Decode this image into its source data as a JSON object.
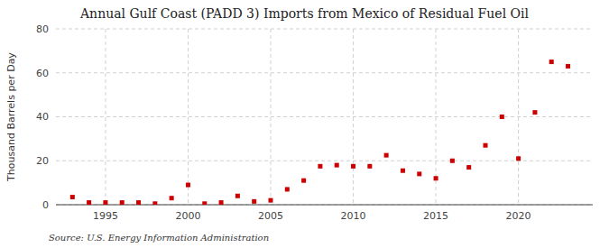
{
  "chart_data": {
    "type": "scatter",
    "title": "Annual Gulf Coast (PADD 3) Imports from Mexico of Residual Fuel Oil",
    "y_label": "Thousand Barrels per Day",
    "annotations": [
      "Source: U.S. Energy Information Administration"
    ],
    "x": [
      1993,
      1994,
      1995,
      1996,
      1997,
      1998,
      1999,
      2000,
      2001,
      2002,
      2003,
      2004,
      2005,
      2006,
      2007,
      2008,
      2009,
      2010,
      2011,
      2012,
      2013,
      2014,
      2015,
      2016,
      2017,
      2018,
      2019,
      2020,
      2021,
      2022,
      2023
    ],
    "values": [
      3.5,
      1.0,
      1.0,
      1.0,
      1.0,
      0.5,
      3.0,
      9.0,
      0.5,
      1.0,
      4.0,
      1.5,
      2.0,
      7.0,
      11.0,
      17.5,
      18.0,
      17.5,
      17.5,
      22.5,
      15.5,
      14.0,
      12.0,
      20.0,
      17.0,
      27.0,
      40.0,
      21.0,
      42.0,
      65.0,
      63.0
    ],
    "color": "#cc0000",
    "marker": "square",
    "xlim": [
      1992.0,
      2024.5
    ],
    "xticks": [
      1995,
      2000,
      2005,
      2010,
      2015,
      2020
    ],
    "ylim": [
      0,
      80
    ],
    "yticks": [
      0,
      20,
      40,
      60,
      80
    ],
    "grid": true
  }
}
